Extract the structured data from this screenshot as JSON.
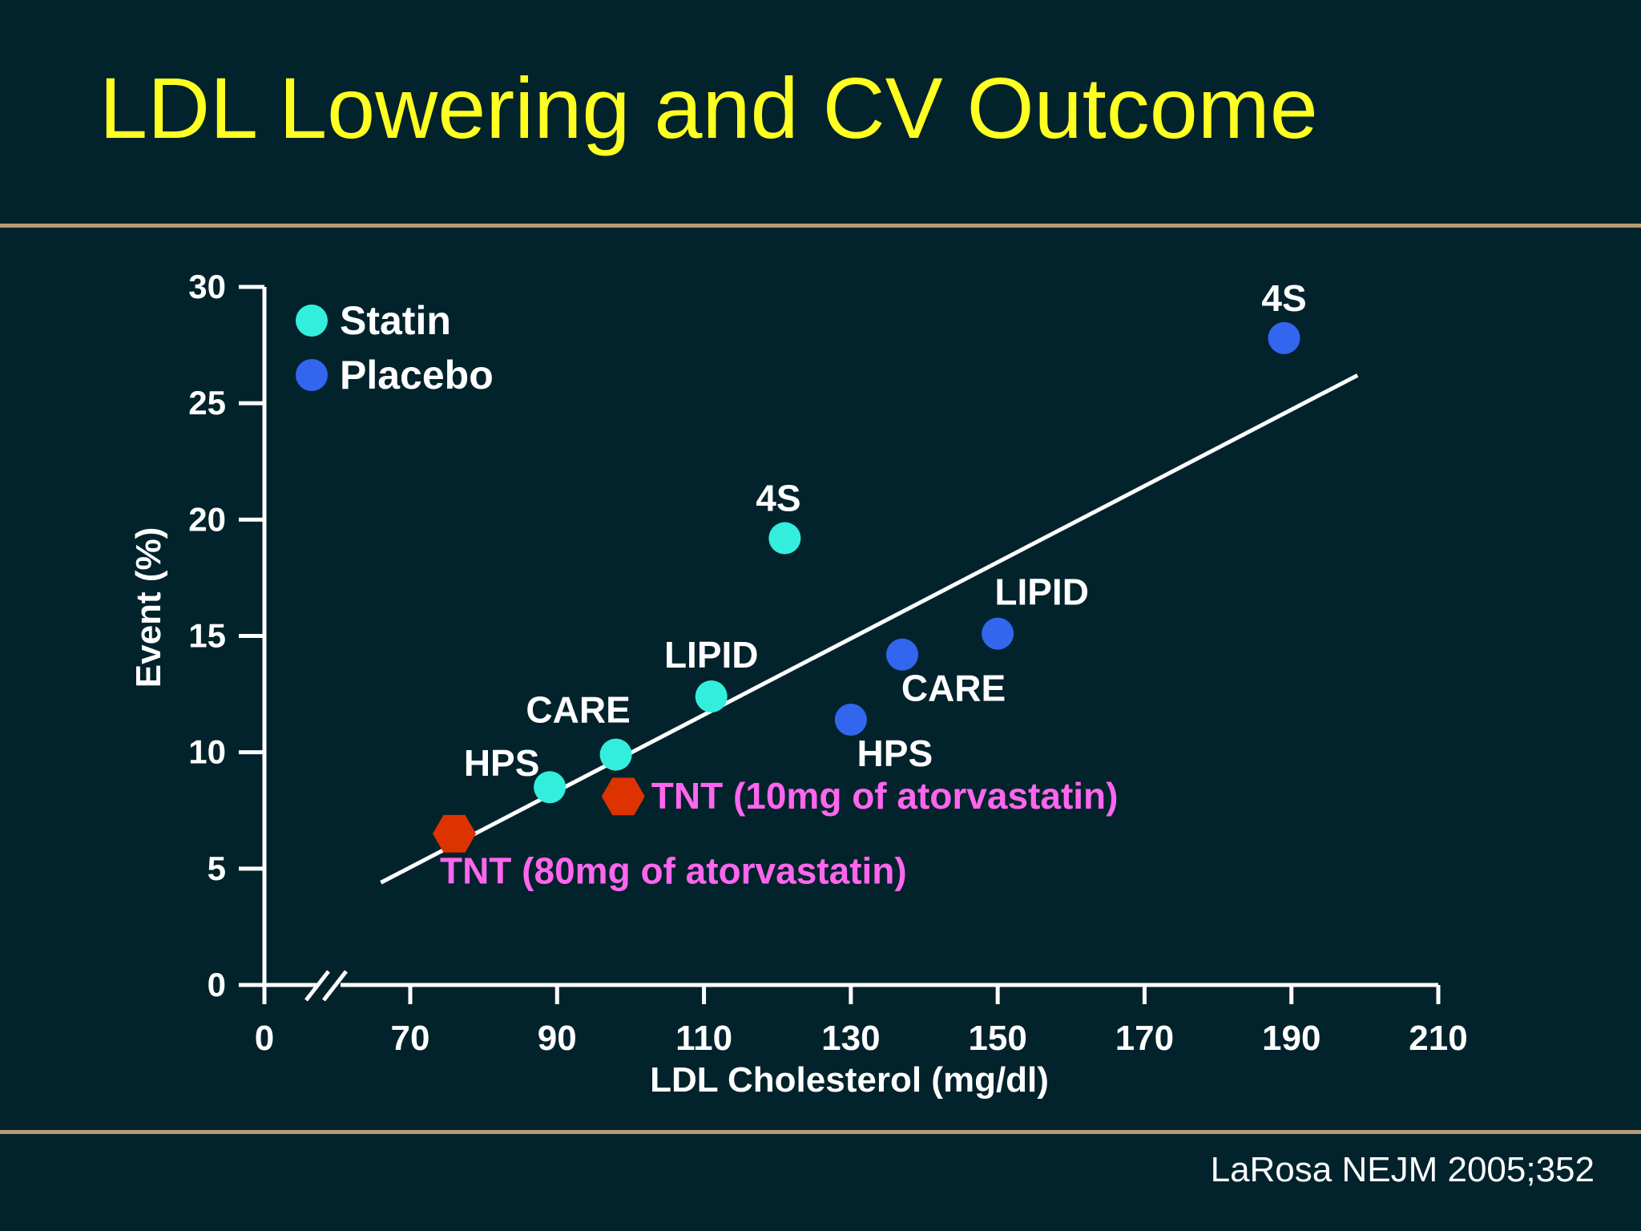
{
  "slide": {
    "title": "LDL Lowering and CV Outcome",
    "citation": "LaRosa NEJM 2005;352"
  },
  "colors": {
    "background": "#02232c",
    "title": "#ffff22",
    "rule": "#b89b76",
    "statin": "#33eedd",
    "placebo": "#3366ee",
    "tnt": "#dd3300",
    "tnt_label": "#ff66ee",
    "text": "#ffffff"
  },
  "chart_data": {
    "type": "scatter",
    "title": "LDL Lowering and CV Outcome",
    "xlabel": "LDL Cholesterol (mg/dl)",
    "ylabel": "Event (%)",
    "x_ticks": [
      0,
      70,
      90,
      110,
      130,
      150,
      170,
      190,
      210
    ],
    "y_ticks": [
      0,
      5,
      10,
      15,
      20,
      25,
      30
    ],
    "xlim": [
      0,
      210
    ],
    "ylim": [
      0,
      30
    ],
    "axis_break": "0-70",
    "legend": [
      {
        "label": "Statin",
        "series": "statin"
      },
      {
        "label": "Placebo",
        "series": "placebo"
      }
    ],
    "series": [
      {
        "name": "Statin",
        "key": "statin",
        "marker": "circle",
        "points": [
          {
            "label": "HPS",
            "x": 89,
            "y": 8.5
          },
          {
            "label": "CARE",
            "x": 98,
            "y": 9.9
          },
          {
            "label": "LIPID",
            "x": 111,
            "y": 12.4
          },
          {
            "label": "4S",
            "x": 121,
            "y": 19.2
          }
        ]
      },
      {
        "name": "Placebo",
        "key": "placebo",
        "marker": "circle",
        "points": [
          {
            "label": "HPS",
            "x": 130,
            "y": 11.4
          },
          {
            "label": "CARE",
            "x": 137,
            "y": 14.2
          },
          {
            "label": "LIPID",
            "x": 150,
            "y": 15.1
          },
          {
            "label": "4S",
            "x": 189,
            "y": 27.8
          }
        ]
      },
      {
        "name": "TNT",
        "key": "tnt",
        "marker": "hexagon",
        "points": [
          {
            "label": "TNT (80mg of atorvastatin)",
            "x": 76,
            "y": 6.5
          },
          {
            "label": "TNT (10mg of atorvastatin)",
            "x": 99,
            "y": 8.1
          }
        ]
      }
    ],
    "trendline": {
      "x": [
        66,
        199
      ],
      "y": [
        4.4,
        26.2
      ]
    }
  }
}
